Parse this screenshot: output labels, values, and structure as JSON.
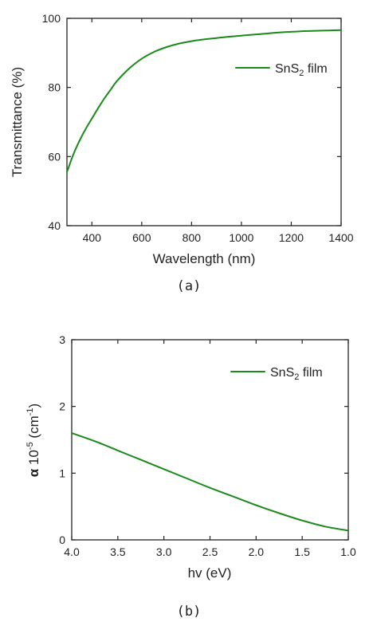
{
  "chart_data": [
    {
      "type": "line",
      "panel": "a",
      "caption": "(a)",
      "title": "",
      "xlabel": "Wavelength (nm)",
      "ylabel": "Transmittance (%)",
      "xlim": [
        300,
        1400
      ],
      "ylim": [
        40,
        100
      ],
      "x_ticks": [
        400,
        600,
        800,
        1000,
        1200,
        1400
      ],
      "y_ticks": [
        40,
        60,
        80,
        100
      ],
      "grid": false,
      "legend_position": "top-right",
      "series": [
        {
          "name_main": "SnS",
          "name_sub": "2",
          "name_tail": " film",
          "color": "#1a8a1a",
          "x": [
            300,
            325,
            350,
            375,
            400,
            425,
            450,
            475,
            500,
            550,
            600,
            650,
            700,
            750,
            800,
            850,
            900,
            950,
            1000,
            1050,
            1100,
            1150,
            1200,
            1250,
            1300,
            1350,
            1400
          ],
          "y": [
            55.5,
            60.5,
            64.5,
            68,
            71,
            74,
            76.8,
            79.3,
            81.8,
            85.5,
            88.3,
            90.3,
            91.7,
            92.7,
            93.4,
            93.9,
            94.3,
            94.7,
            95.0,
            95.3,
            95.6,
            95.9,
            96.1,
            96.3,
            96.4,
            96.5,
            96.6
          ]
        }
      ]
    },
    {
      "type": "line",
      "panel": "b",
      "caption": "(b)",
      "title": "",
      "xlabel": "hv (eV)",
      "ylabel_symbol": "α",
      "ylabel_base": " 10",
      "ylabel_exp": "-5",
      "ylabel_unit_open": " (cm",
      "ylabel_unit_exp": "-1",
      "ylabel_unit_close": ")",
      "xlim": [
        4.0,
        1.0
      ],
      "ylim": [
        0,
        3
      ],
      "x_ticks": [
        "4.0",
        "3.5",
        "3.0",
        "2.5",
        "2.0",
        "1.5",
        "1.0"
      ],
      "y_ticks": [
        "0",
        "1",
        "2",
        "3"
      ],
      "grid": false,
      "legend_position": "top-right",
      "series": [
        {
          "name_main": "SnS",
          "name_sub": "2",
          "name_tail": " film",
          "color": "#1a8a1a",
          "x": [
            4.0,
            3.75,
            3.5,
            3.25,
            3.0,
            2.75,
            2.5,
            2.25,
            2.0,
            1.75,
            1.5,
            1.25,
            1.0
          ],
          "y": [
            1.6,
            1.48,
            1.34,
            1.2,
            1.06,
            0.92,
            0.78,
            0.65,
            0.52,
            0.4,
            0.29,
            0.2,
            0.14
          ]
        }
      ]
    }
  ]
}
